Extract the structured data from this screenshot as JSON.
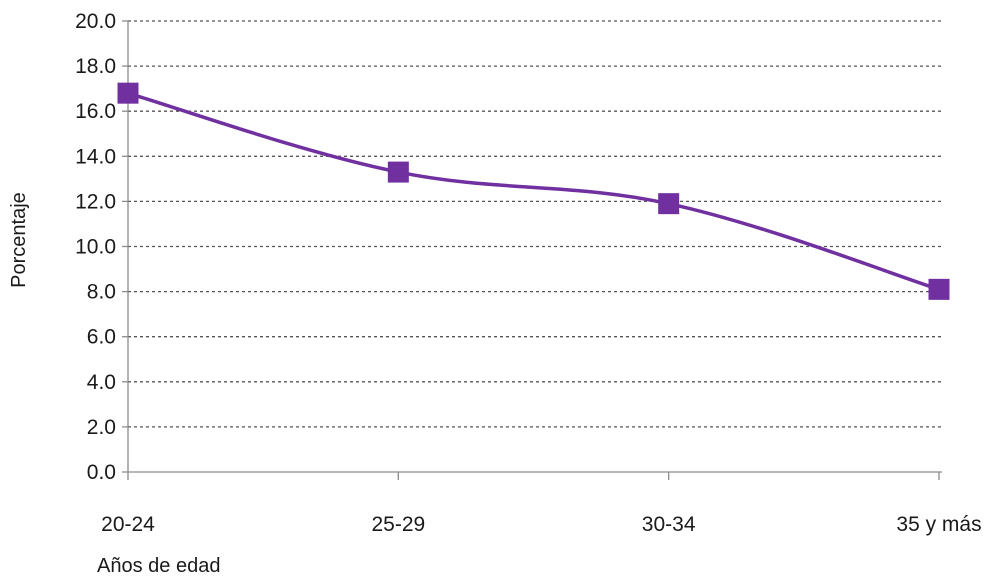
{
  "chart_data": {
    "type": "line",
    "title": "",
    "xlabel": "Años de edad",
    "ylabel": "Porcentaje",
    "categories": [
      "20-24",
      "25-29",
      "30-34",
      "35 y más"
    ],
    "series": [
      {
        "values": [
          16.8,
          13.3,
          11.9,
          8.1
        ]
      }
    ],
    "ylim": [
      0,
      20
    ],
    "yticks": [
      "0.0",
      "2.0",
      "4.0",
      "6.0",
      "8.0",
      "10.0",
      "12.0",
      "14.0",
      "16.0",
      "18.0",
      "20.0"
    ],
    "grid": true,
    "legend": "none",
    "colors": {
      "series": "#7030a0",
      "grid": "#555555",
      "axis": "#8c8c8c"
    }
  }
}
